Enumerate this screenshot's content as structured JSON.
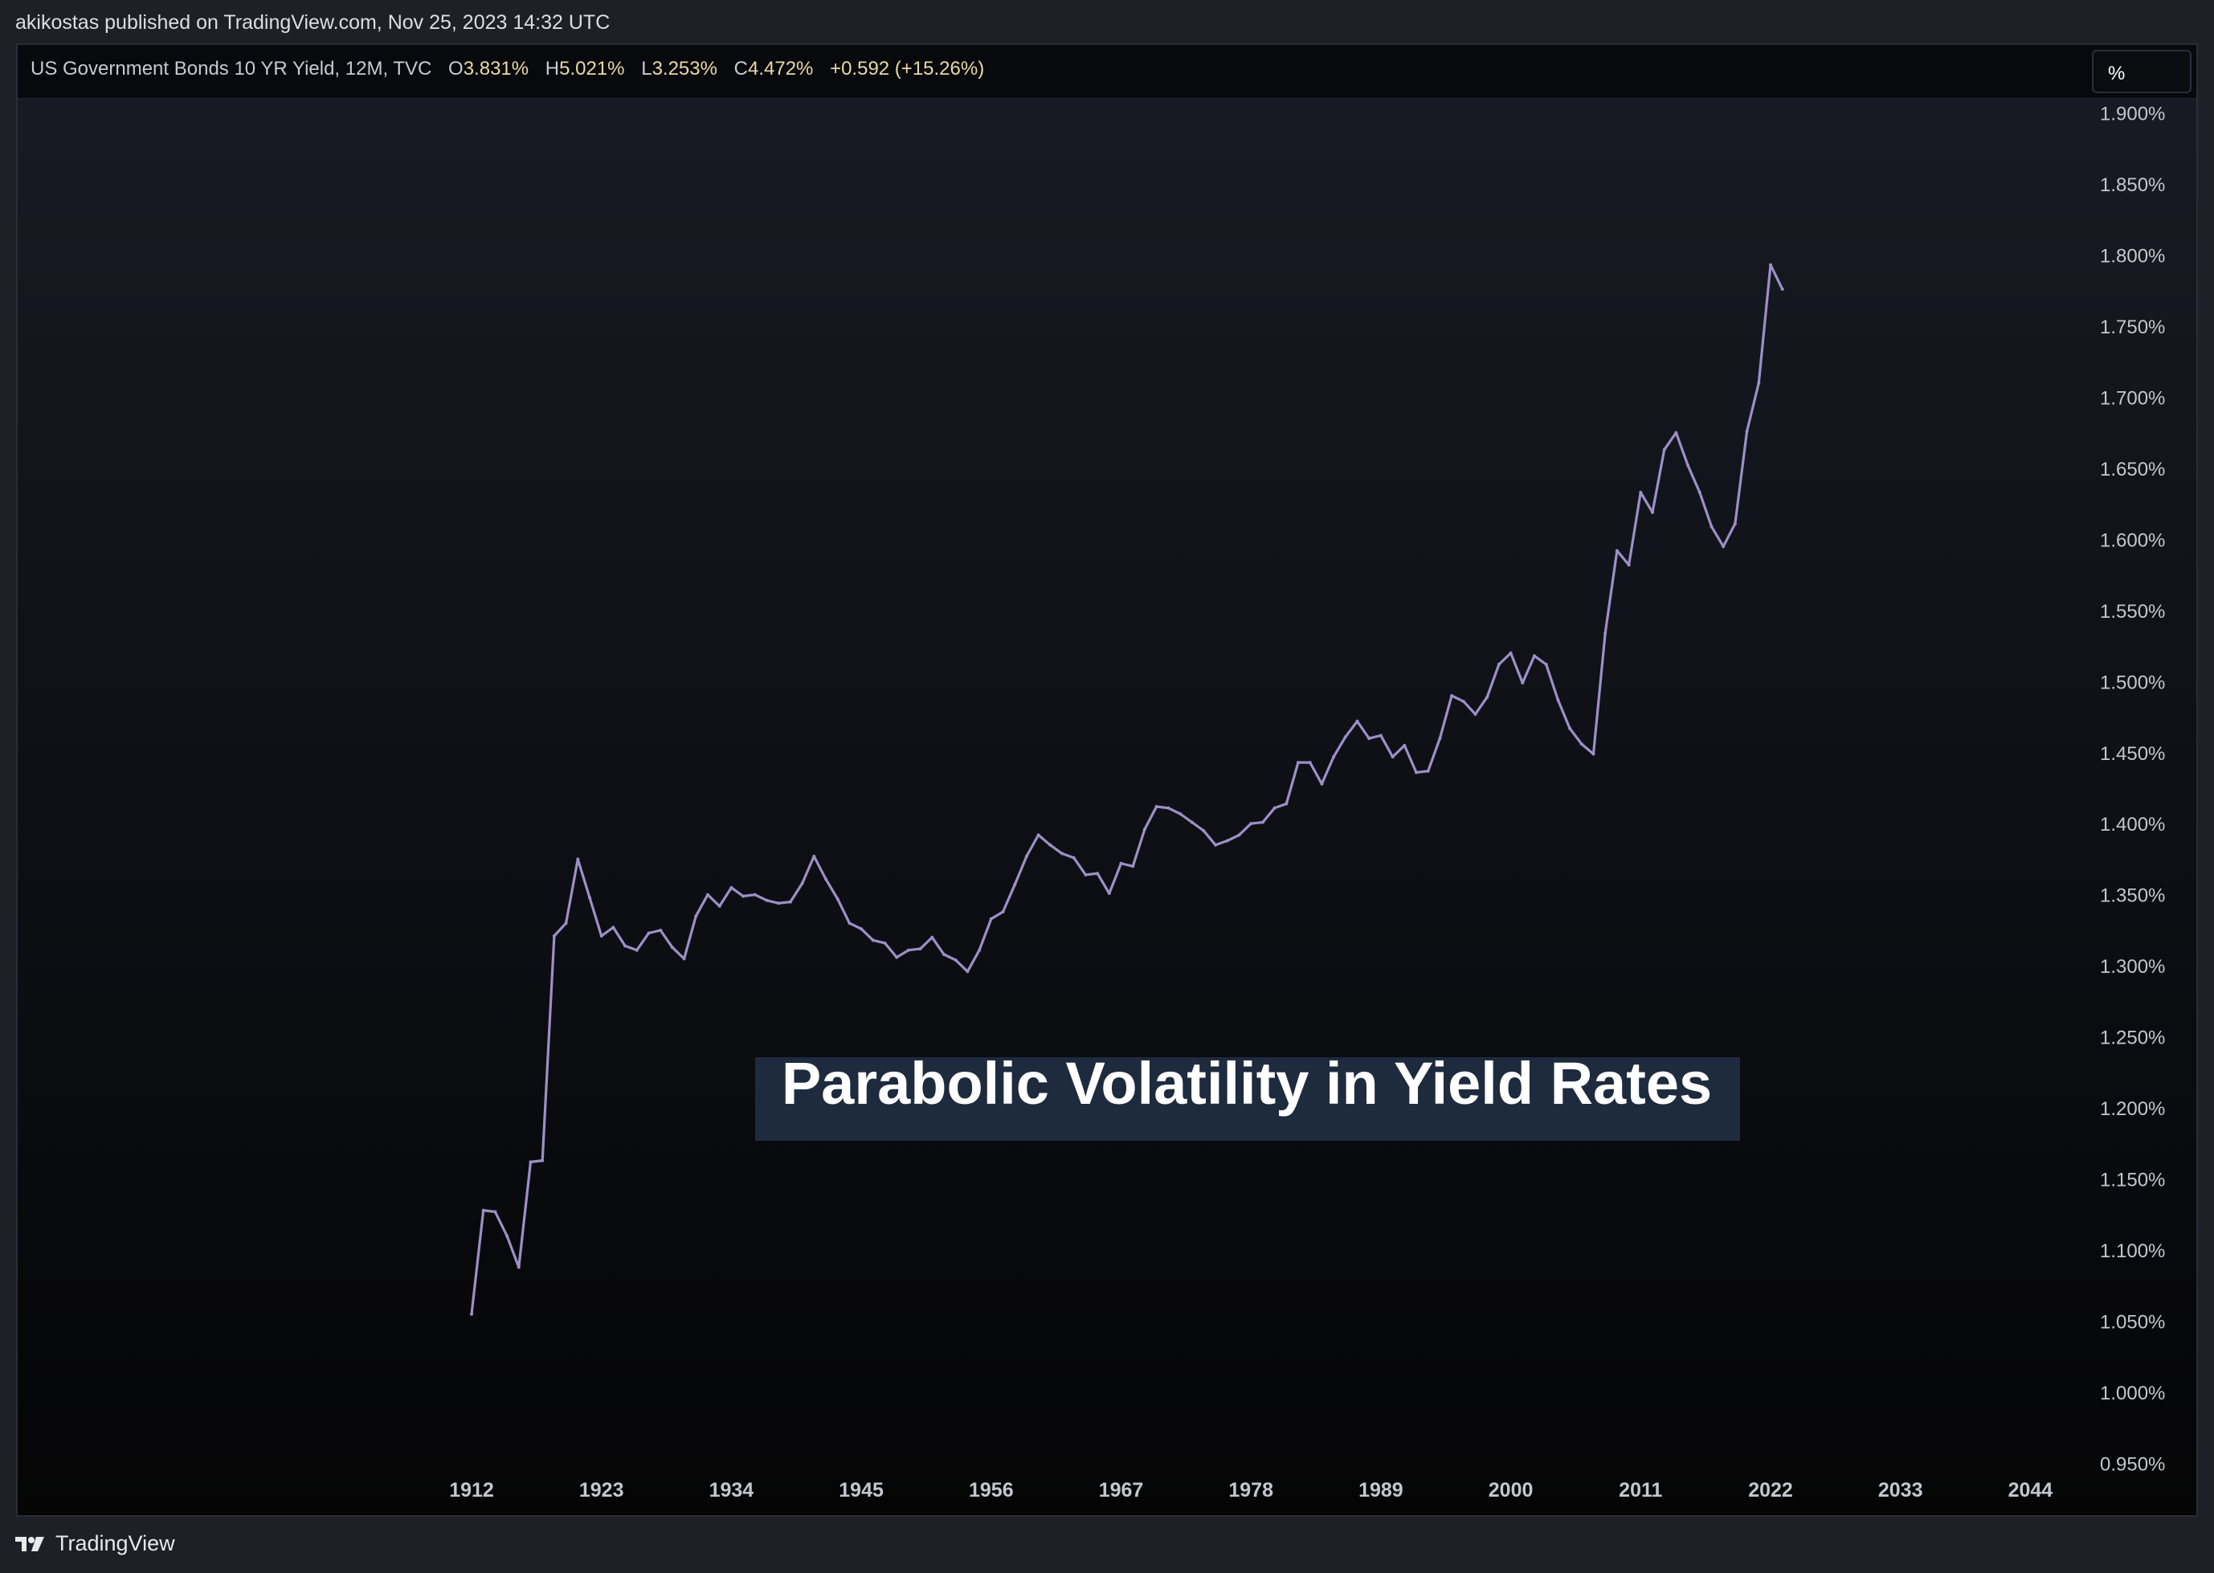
{
  "header": {
    "published_line": "akikostas published on TradingView.com, Nov 25, 2023 14:32 UTC"
  },
  "legend": {
    "instrument": "US Government Bonds 10 YR Yield, 12M, TVC",
    "open_label": "O",
    "open": "3.831%",
    "high_label": "H",
    "high": "5.021%",
    "low_label": "L",
    "low": "3.253%",
    "close_label": "C",
    "close": "4.472%",
    "change": "+0.592 (+15.26%)"
  },
  "toolbar": {
    "scale_label": "%"
  },
  "footer": {
    "brand": "TradingView",
    "logo_icon": "tradingview-logo-icon"
  },
  "colors": {
    "line": "#9d8fc7",
    "background_top": "#181b24",
    "background_bottom": "#050506",
    "legend_values": "#e8d9a6",
    "annotation_bg": "#1e2b3e"
  },
  "chart_data": {
    "type": "line",
    "title": "",
    "annotation": "Parabolic Volatility in Yield Rates",
    "xlabel": "",
    "ylabel": "",
    "x_ticks": [
      "1912",
      "1923",
      "1934",
      "1945",
      "1956",
      "1967",
      "1978",
      "1989",
      "2000",
      "2011",
      "2022",
      "2033",
      "2044"
    ],
    "y_ticks": [
      "0.950%",
      "1.000%",
      "1.050%",
      "1.100%",
      "1.150%",
      "1.200%",
      "1.250%",
      "1.300%",
      "1.350%",
      "1.400%",
      "1.450%",
      "1.500%",
      "1.550%",
      "1.600%",
      "1.650%",
      "1.700%",
      "1.750%",
      "1.800%",
      "1.850%",
      "1.900%"
    ],
    "xlim": [
      1912,
      2044
    ],
    "ylim": [
      0.9475,
      1.9025
    ],
    "y_scale": "percent (log-style)",
    "grid": false,
    "series": [
      {
        "x": [
          1912,
          1913,
          1914,
          1915,
          1916,
          1917,
          1918,
          1919,
          1920,
          1921,
          1922,
          1923,
          1924,
          1925,
          1926,
          1927,
          1928,
          1929,
          1930,
          1931,
          1932,
          1933,
          1934,
          1935,
          1936,
          1937,
          1938,
          1939,
          1940,
          1941,
          1942,
          1943,
          1944,
          1945,
          1946,
          1947,
          1948,
          1949,
          1950,
          1951,
          1952,
          1953,
          1954,
          1955,
          1956,
          1957,
          1958,
          1959,
          1960,
          1961,
          1962,
          1963,
          1964,
          1965,
          1966,
          1967,
          1968,
          1969,
          1970,
          1971,
          1972,
          1973,
          1974,
          1975,
          1976,
          1977,
          1978,
          1979,
          1980,
          1981,
          1982,
          1983,
          1984,
          1985,
          1986,
          1987,
          1988,
          1989,
          1990,
          1991,
          1992,
          1993,
          1994,
          1995,
          1996,
          1997,
          1998,
          1999,
          2000,
          2001,
          2002,
          2003,
          2004,
          2005,
          2006,
          2007,
          2008,
          2009,
          2010,
          2011,
          2012,
          2013,
          2014,
          2015,
          2016,
          2017,
          2018,
          2019,
          2020,
          2021,
          2022,
          2023
        ],
        "y": [
          1.055,
          1.128,
          1.127,
          1.11,
          1.088,
          1.162,
          1.163,
          1.321,
          1.33,
          1.375,
          1.348,
          1.321,
          1.327,
          1.314,
          1.311,
          1.323,
          1.325,
          1.313,
          1.305,
          1.335,
          1.35,
          1.342,
          1.355,
          1.349,
          1.35,
          1.346,
          1.344,
          1.345,
          1.358,
          1.377,
          1.361,
          1.347,
          1.33,
          1.326,
          1.318,
          1.316,
          1.306,
          1.311,
          1.312,
          1.32,
          1.308,
          1.304,
          1.296,
          1.311,
          1.333,
          1.338,
          1.357,
          1.377,
          1.392,
          1.385,
          1.379,
          1.376,
          1.364,
          1.365,
          1.351,
          1.372,
          1.37,
          1.396,
          1.412,
          1.411,
          1.407,
          1.401,
          1.395,
          1.385,
          1.388,
          1.392,
          1.4,
          1.401,
          1.411,
          1.414,
          1.443,
          1.443,
          1.428,
          1.447,
          1.461,
          1.472,
          1.46,
          1.462,
          1.447,
          1.455,
          1.436,
          1.437,
          1.46,
          1.49,
          1.486,
          1.477,
          1.489,
          1.512,
          1.52,
          1.499,
          1.518,
          1.512,
          1.487,
          1.467,
          1.456,
          1.449,
          1.534,
          1.592,
          1.582,
          1.633,
          1.619,
          1.663,
          1.675,
          1.652,
          1.633,
          1.609,
          1.595,
          1.611,
          1.676,
          1.71,
          1.793,
          1.776
        ]
      }
    ]
  }
}
